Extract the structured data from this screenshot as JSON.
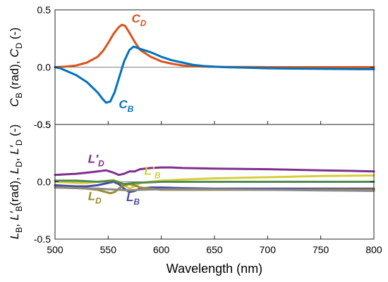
{
  "chart_data": [
    {
      "type": "line",
      "ylabel_parts": [
        "C",
        "B",
        " (rad), ",
        "C",
        "D",
        " (-)"
      ],
      "xlim": [
        500,
        800
      ],
      "ylim": [
        -0.5,
        0.5
      ],
      "yticks": [
        "0.5",
        "0.0",
        "-0.5"
      ],
      "grid": false,
      "zero_line": true,
      "series": [
        {
          "name": "C_D",
          "color": "#d95319",
          "x": [
            500,
            510,
            520,
            530,
            540,
            545,
            550,
            555,
            560,
            563,
            566,
            570,
            575,
            580,
            590,
            600,
            610,
            620,
            630,
            640,
            650,
            660,
            680,
            700,
            720,
            750,
            780,
            800
          ],
          "y": [
            0.0,
            0.005,
            0.015,
            0.04,
            0.09,
            0.14,
            0.21,
            0.29,
            0.35,
            0.37,
            0.36,
            0.3,
            0.22,
            0.15,
            0.09,
            0.05,
            0.03,
            0.015,
            0.008,
            0.005,
            0.003,
            0.002,
            0.001,
            0.0,
            0.0,
            0.0,
            0.0,
            0.0
          ]
        },
        {
          "name": "C_B",
          "color": "#0072bd",
          "x": [
            500,
            505,
            510,
            520,
            530,
            540,
            545,
            548,
            552,
            556,
            560,
            565,
            570,
            574,
            580,
            590,
            600,
            610,
            620,
            630,
            640,
            650,
            660,
            680,
            700,
            720,
            750,
            780,
            800
          ],
          "y": [
            0.0,
            -0.01,
            -0.03,
            -0.07,
            -0.13,
            -0.22,
            -0.28,
            -0.31,
            -0.3,
            -0.22,
            -0.1,
            0.05,
            0.15,
            0.18,
            0.16,
            0.13,
            0.09,
            0.06,
            0.04,
            0.02,
            0.01,
            0.005,
            0.0,
            -0.005,
            -0.01,
            -0.012,
            -0.015,
            -0.017,
            -0.018
          ]
        }
      ],
      "labels": [
        {
          "main": "C",
          "sub": "D",
          "color": "#d95319",
          "x": 572,
          "y": 0.39
        },
        {
          "main": "C",
          "sub": "B",
          "color": "#0072bd",
          "x": 560,
          "y": -0.36
        }
      ]
    },
    {
      "type": "line",
      "ylabel_parts": [
        "L",
        "B",
        ", ",
        "L′",
        "B",
        "(rad), ",
        "L",
        "D",
        ", ",
        "L′",
        "D",
        " (-)"
      ],
      "xlim": [
        500,
        800
      ],
      "ylim": [
        -0.5,
        0.5
      ],
      "xticks": [
        500,
        550,
        600,
        650,
        700,
        750,
        800
      ],
      "yticks": [
        "0.5",
        "0.0",
        "-0.5"
      ],
      "xlabel": "Wavelength (nm)",
      "grid": false,
      "zero_line": true,
      "series": [
        {
          "name": "L'_D",
          "color": "#7e2f8e",
          "x": [
            500,
            510,
            520,
            530,
            540,
            548,
            555,
            560,
            565,
            570,
            575,
            580,
            590,
            600,
            610,
            620,
            650,
            700,
            750,
            780,
            800
          ],
          "y": [
            0.06,
            0.065,
            0.07,
            0.08,
            0.09,
            0.1,
            0.08,
            0.06,
            0.07,
            0.09,
            0.09,
            0.11,
            0.12,
            0.125,
            0.125,
            0.12,
            0.115,
            0.11,
            0.1,
            0.095,
            0.09
          ]
        },
        {
          "name": "L'_B",
          "color": "#d4cf3a",
          "x": [
            500,
            510,
            520,
            530,
            540,
            550,
            555,
            560,
            565,
            570,
            575,
            580,
            590,
            600,
            610,
            620,
            650,
            700,
            750,
            800
          ],
          "y": [
            0.0,
            -0.005,
            -0.01,
            -0.01,
            0.0,
            0.01,
            0.015,
            0.0,
            -0.03,
            -0.06,
            -0.04,
            -0.01,
            0.0,
            0.01,
            0.015,
            0.02,
            0.03,
            0.04,
            0.05,
            0.055
          ]
        },
        {
          "name": "L_B",
          "color": "#4a4aa0",
          "x": [
            500,
            510,
            520,
            530,
            540,
            550,
            555,
            560,
            565,
            570,
            575,
            580,
            590,
            600,
            620,
            650,
            700,
            750,
            800
          ],
          "y": [
            -0.03,
            -0.035,
            -0.04,
            -0.04,
            -0.03,
            -0.01,
            0.0,
            -0.02,
            -0.06,
            -0.09,
            -0.08,
            -0.06,
            -0.05,
            -0.05,
            -0.055,
            -0.06,
            -0.06,
            -0.06,
            -0.06
          ]
        },
        {
          "name": "L_D",
          "color": "#9c8a2a",
          "x": [
            500,
            510,
            520,
            530,
            540,
            548,
            552,
            556,
            560,
            565,
            570,
            575,
            580,
            590,
            600,
            620,
            650,
            700,
            750,
            800
          ],
          "y": [
            -0.05,
            -0.05,
            -0.055,
            -0.06,
            -0.07,
            -0.09,
            -0.1,
            -0.09,
            -0.06,
            -0.03,
            -0.02,
            -0.03,
            -0.05,
            -0.06,
            -0.07,
            -0.07,
            -0.07,
            -0.07,
            -0.07,
            -0.07
          ]
        },
        {
          "name": "grey",
          "color": "#8a8a8a",
          "x": [
            500,
            520,
            540,
            550,
            560,
            570,
            580,
            600,
            650,
            700,
            750,
            800
          ],
          "y": [
            -0.05,
            -0.055,
            -0.06,
            -0.065,
            -0.07,
            -0.075,
            -0.07,
            -0.065,
            -0.065,
            -0.07,
            -0.075,
            -0.08
          ]
        },
        {
          "name": "green",
          "color": "#4f8a4f",
          "x": [
            500,
            520,
            540,
            555,
            565,
            575,
            600,
            650,
            700,
            800
          ],
          "y": [
            0.01,
            0.01,
            0.0,
            0.01,
            -0.02,
            -0.01,
            0.0,
            0.0,
            0.0,
            0.0
          ]
        }
      ],
      "labels": [
        {
          "main": "L′",
          "sub": "D",
          "color": "#7e2f8e",
          "x": 531,
          "y": 0.165
        },
        {
          "main": "L′",
          "sub": "B",
          "color": "#d4cf3a",
          "x": 584,
          "y": 0.06
        },
        {
          "main": "L",
          "sub": "D",
          "color": "#9c8a2a",
          "x": 531,
          "y": -0.16
        },
        {
          "main": "L",
          "sub": "B",
          "color": "#4a4aa0",
          "x": 567,
          "y": -0.17
        }
      ]
    }
  ]
}
